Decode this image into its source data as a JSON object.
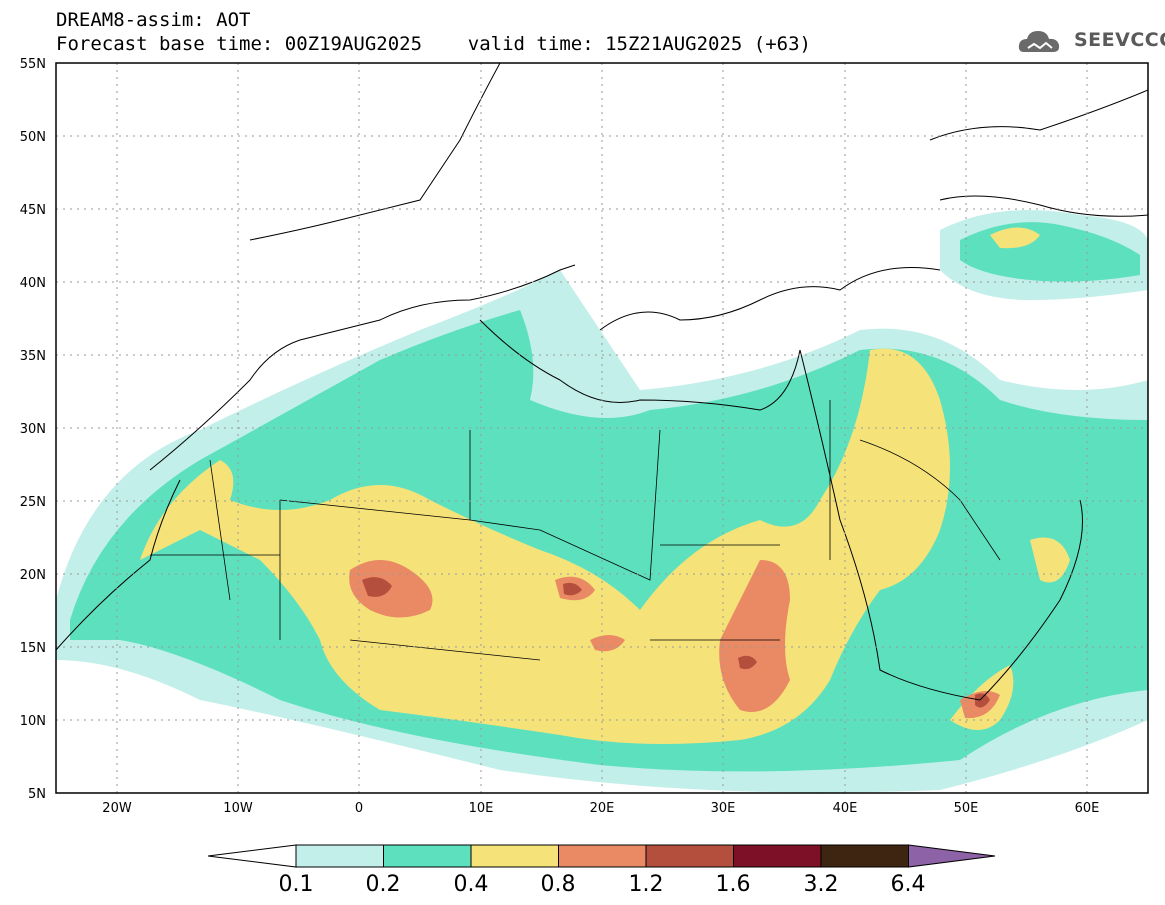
{
  "header": {
    "line1": "DREAM8-assim: AOT",
    "line2": "Forecast base time: 00Z19AUG2025    valid time: 15Z21AUG2025 (+63)"
  },
  "logo": {
    "text": "SEEVCCC",
    "icon": "cloud-icon"
  },
  "map": {
    "lat_labels": [
      "55N",
      "50N",
      "45N",
      "40N",
      "35N",
      "30N",
      "25N",
      "20N",
      "15N",
      "10N",
      "5N"
    ],
    "lon_labels": [
      "20W",
      "10W",
      "0",
      "10E",
      "20E",
      "30E",
      "40E",
      "50E",
      "60E"
    ]
  },
  "colorbar": {
    "labels": [
      "0.1",
      "0.2",
      "0.4",
      "0.8",
      "1.2",
      "1.6",
      "3.2",
      "6.4"
    ],
    "colors": [
      "#ffffff",
      "#c2efe9",
      "#5de0be",
      "#f5e37a",
      "#e98a64",
      "#b44f3e",
      "#7d0f26",
      "#3d2512",
      "#8d62a6"
    ]
  }
}
